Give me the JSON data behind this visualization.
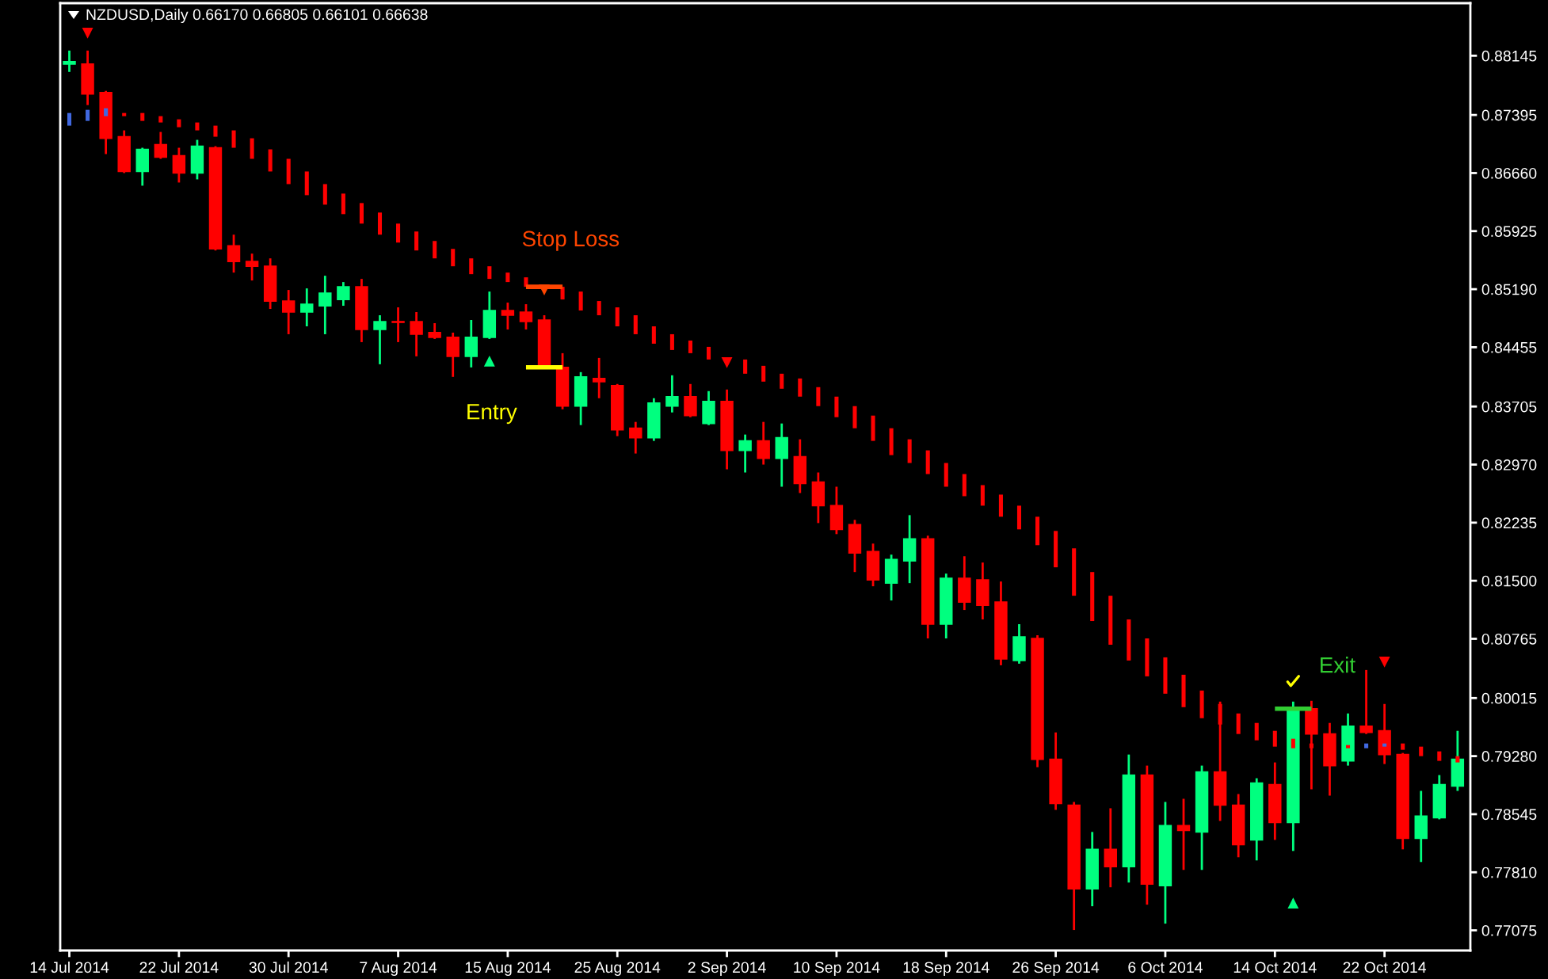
{
  "chart_data": {
    "type": "candlestick",
    "title": "NZDUSD,Daily 0.66170 0.66805 0.66101 0.66638",
    "categories": [
      "14 Jul 2014",
      null,
      null,
      null,
      null,
      null,
      "22 Jul 2014",
      null,
      null,
      null,
      null,
      null,
      "30 Jul 2014",
      null,
      null,
      null,
      null,
      null,
      "7 Aug 2014",
      null,
      null,
      null,
      null,
      null,
      "15 Aug 2014",
      null,
      null,
      null,
      null,
      null,
      "25 Aug 2014",
      null,
      null,
      null,
      null,
      null,
      "2 Sep 2014",
      null,
      null,
      null,
      null,
      null,
      "10 Sep 2014",
      null,
      null,
      null,
      null,
      null,
      "18 Sep 2014",
      null,
      null,
      null,
      null,
      null,
      "26 Sep 2014",
      null,
      null,
      null,
      null,
      null,
      "6 Oct 2014",
      null,
      null,
      null,
      null,
      null,
      "14 Oct 2014",
      null,
      null,
      null,
      null,
      null,
      "22 Oct 2014",
      null,
      null,
      null,
      null
    ],
    "ohlc": [
      [
        0.8804,
        0.8821,
        0.8794,
        0.8807
      ],
      [
        0.8804,
        0.8821,
        0.8752,
        0.8766
      ],
      [
        0.8768,
        0.877,
        0.869,
        0.871
      ],
      [
        0.8712,
        0.872,
        0.8666,
        0.8668
      ],
      [
        0.8668,
        0.8698,
        0.865,
        0.8696
      ],
      [
        0.8702,
        0.8718,
        0.8684,
        0.8686
      ],
      [
        0.8688,
        0.8698,
        0.8654,
        0.8666
      ],
      [
        0.8666,
        0.8708,
        0.8658,
        0.87
      ],
      [
        0.8698,
        0.87,
        0.8568,
        0.857
      ],
      [
        0.8574,
        0.8588,
        0.854,
        0.8554
      ],
      [
        0.8554,
        0.8564,
        0.853,
        0.8548
      ],
      [
        0.8548,
        0.8558,
        0.8494,
        0.8504
      ],
      [
        0.8504,
        0.8518,
        0.8462,
        0.849
      ],
      [
        0.849,
        0.852,
        0.8472,
        0.85
      ],
      [
        0.8498,
        0.8536,
        0.8462,
        0.8514
      ],
      [
        0.8506,
        0.8528,
        0.8498,
        0.8522
      ],
      [
        0.8522,
        0.8532,
        0.8452,
        0.8468
      ],
      [
        0.8468,
        0.8486,
        0.8424,
        0.8478
      ],
      [
        0.8478,
        0.8496,
        0.8452,
        0.8477
      ],
      [
        0.8478,
        0.849,
        0.8434,
        0.8462
      ],
      [
        0.8464,
        0.8476,
        0.8456,
        0.8458
      ],
      [
        0.8458,
        0.8464,
        0.8408,
        0.8434
      ],
      [
        0.8434,
        0.848,
        0.842,
        0.8458
      ],
      [
        0.8458,
        0.8516,
        0.8456,
        0.8492
      ],
      [
        0.8492,
        0.8502,
        0.8468,
        0.8486
      ],
      [
        0.849,
        0.85,
        0.8468,
        0.8478
      ],
      [
        0.848,
        0.8486,
        0.8418,
        0.842
      ],
      [
        0.842,
        0.8438,
        0.8367,
        0.8371
      ],
      [
        0.8371,
        0.8414,
        0.8347,
        0.8408
      ],
      [
        0.8406,
        0.8432,
        0.8381,
        0.8402
      ],
      [
        0.8397,
        0.8399,
        0.8333,
        0.8341
      ],
      [
        0.8343,
        0.8351,
        0.8311,
        0.8331
      ],
      [
        0.8331,
        0.8381,
        0.8327,
        0.8375
      ],
      [
        0.8371,
        0.841,
        0.8363,
        0.8383
      ],
      [
        0.8383,
        0.8399,
        0.8357,
        0.8359
      ],
      [
        0.8349,
        0.839,
        0.8347,
        0.8377
      ],
      [
        0.8377,
        0.8392,
        0.8291,
        0.8315
      ],
      [
        0.8315,
        0.8335,
        0.8287,
        0.8327
      ],
      [
        0.8327,
        0.8351,
        0.8297,
        0.8305
      ],
      [
        0.8305,
        0.8349,
        0.8269,
        0.8331
      ],
      [
        0.8307,
        0.8329,
        0.8261,
        0.8273
      ],
      [
        0.8275,
        0.8287,
        0.8223,
        0.8245
      ],
      [
        0.8245,
        0.8269,
        0.8209,
        0.8215
      ],
      [
        0.8221,
        0.8227,
        0.8161,
        0.8185
      ],
      [
        0.8187,
        0.8197,
        0.8143,
        0.8151
      ],
      [
        0.8147,
        0.8183,
        0.8125,
        0.8177
      ],
      [
        0.8175,
        0.8233,
        0.8147,
        0.8203
      ],
      [
        0.8203,
        0.8207,
        0.8077,
        0.8095
      ],
      [
        0.8095,
        0.8159,
        0.8077,
        0.8153
      ],
      [
        0.8153,
        0.8181,
        0.8113,
        0.8123
      ],
      [
        0.8151,
        0.8173,
        0.8101,
        0.8119
      ],
      [
        0.8123,
        0.8149,
        0.8043,
        0.8051
      ],
      [
        0.8049,
        0.8095,
        0.8045,
        0.8079
      ],
      [
        0.8077,
        0.8081,
        0.7914,
        0.7924
      ],
      [
        0.7924,
        0.7958,
        0.786,
        0.7868
      ],
      [
        0.7866,
        0.787,
        0.7708,
        0.776
      ],
      [
        0.776,
        0.7832,
        0.7738,
        0.781
      ],
      [
        0.781,
        0.7862,
        0.7762,
        0.7788
      ],
      [
        0.7788,
        0.793,
        0.7768,
        0.7904
      ],
      [
        0.7904,
        0.7916,
        0.774,
        0.7766
      ],
      [
        0.7764,
        0.787,
        0.7716,
        0.784
      ],
      [
        0.784,
        0.7874,
        0.7784,
        0.7834
      ],
      [
        0.7832,
        0.7916,
        0.7784,
        0.7908
      ],
      [
        0.7908,
        0.7997,
        0.7846,
        0.7866
      ],
      [
        0.7866,
        0.788,
        0.78,
        0.7816
      ],
      [
        0.7822,
        0.79,
        0.7796,
        0.7894
      ],
      [
        0.7892,
        0.792,
        0.7822,
        0.7844
      ],
      [
        0.7844,
        0.7997,
        0.7808,
        0.7988
      ],
      [
        0.7988,
        0.7998,
        0.7886,
        0.7956
      ],
      [
        0.7956,
        0.797,
        0.7878,
        0.7916
      ],
      [
        0.7922,
        0.7982,
        0.7916,
        0.7966
      ],
      [
        0.7966,
        0.8037,
        0.7956,
        0.7958
      ],
      [
        0.796,
        0.7994,
        0.7918,
        0.793
      ],
      [
        0.793,
        0.7932,
        0.781,
        0.7824
      ],
      [
        0.7824,
        0.7884,
        0.7794,
        0.7852
      ],
      [
        0.785,
        0.7904,
        0.7848,
        0.7892
      ],
      [
        0.789,
        0.796,
        0.7884,
        0.7924
      ]
    ],
    "colors": [
      "#00ff7f",
      "#ff0000",
      "#ff0000",
      "#ff0000",
      "#00ff7f",
      "#ff0000",
      "#ff0000",
      "#00ff7f",
      "#ff0000",
      "#ff0000",
      "#ff0000",
      "#ff0000",
      "#ff0000",
      "#00ff7f",
      "#00ff7f",
      "#00ff7f",
      "#ff0000",
      "#00ff7f",
      "#ff0000",
      "#ff0000",
      "#ff0000",
      "#ff0000",
      "#00ff7f",
      "#00ff7f",
      "#ff0000",
      "#ff0000",
      "#ff0000",
      "#ff0000",
      "#00ff7f",
      "#ff0000",
      "#ff0000",
      "#ff0000",
      "#00ff7f",
      "#00ff7f",
      "#ff0000",
      "#00ff7f",
      "#ff0000",
      "#00ff7f",
      "#ff0000",
      "#00ff7f",
      "#ff0000",
      "#ff0000",
      "#ff0000",
      "#ff0000",
      "#ff0000",
      "#00ff7f",
      "#00ff7f",
      "#ff0000",
      "#00ff7f",
      "#ff0000",
      "#ff0000",
      "#ff0000",
      "#00ff7f",
      "#ff0000",
      "#ff0000",
      "#ff0000",
      "#00ff7f",
      "#ff0000",
      "#00ff7f",
      "#ff0000",
      "#00ff7f",
      "#ff0000",
      "#00ff7f",
      "#ff0000",
      "#ff0000",
      "#00ff7f",
      "#ff0000",
      "#00ff7f",
      "#ff0000",
      "#ff0000",
      "#00ff7f",
      "#ff0000",
      "#ff0000",
      "#ff0000",
      "#00ff7f",
      "#00ff7f",
      "#00ff7f"
    ],
    "ylim": [
      0.7682,
      0.8881
    ],
    "yticks": [
      0.88145,
      0.87395,
      {
        "value": 0.8666,
        "label": "0.86660"
      },
      0.85925,
      {
        "value": 0.8519,
        "label": "0.85190"
      },
      0.84455,
      0.83705,
      {
        "value": 0.8297,
        "label": "0.82970"
      },
      0.82235,
      {
        "value": 0.815,
        "label": "0.81500"
      },
      0.80765,
      0.80015,
      {
        "value": 0.7928,
        "label": "0.79280"
      },
      0.78545,
      {
        "value": 0.7781,
        "label": "0.77810"
      },
      0.77075
    ],
    "series": [
      {
        "type": "bar",
        "base": [
          0.8726,
          0.8732,
          0.8738,
          0.8738,
          0.8732,
          0.873,
          0.8724,
          0.872,
          0.8712,
          0.8698,
          0.8684,
          0.8668,
          0.8652,
          0.8638,
          0.8626,
          0.8614,
          0.8602,
          0.8588,
          0.8578,
          0.8568,
          0.8558,
          0.8548,
          0.8538,
          0.8532,
          0.8528,
          0.8522,
          null,
          0.8506,
          0.8492,
          0.8486,
          0.8472,
          0.8462,
          0.845,
          0.8442,
          0.8438,
          0.843,
          null,
          0.8412,
          0.8402,
          0.8393,
          0.8383,
          0.8371,
          0.8357,
          0.8343,
          0.8327,
          0.8309,
          0.8299,
          0.8285,
          0.8269,
          0.8257,
          0.8245,
          0.8231,
          0.8215,
          0.8195,
          0.8167,
          0.8131,
          0.8099,
          0.8069,
          0.8049,
          0.8029,
          0.8007,
          0.799,
          0.7976,
          0.7968,
          0.7956,
          0.7948,
          0.794,
          0.7938,
          0.7938,
          null,
          0.7938,
          0.7938,
          0.794,
          0.7936,
          0.7928,
          0.7922,
          0.792
        ],
        "values": [
          0.0016,
          0.0014,
          0.001,
          0.0004,
          0.001,
          0.0008,
          0.001,
          0.001,
          0.0014,
          0.0022,
          0.0026,
          0.0028,
          0.0032,
          0.003,
          0.0026,
          0.0026,
          0.0026,
          0.0028,
          0.0024,
          0.0024,
          0.0022,
          0.0022,
          0.002,
          0.0016,
          0.0012,
          0.0012,
          null,
          0.0016,
          0.0024,
          0.0018,
          0.0024,
          0.0024,
          0.0022,
          0.002,
          0.0016,
          0.0016,
          null,
          0.0018,
          0.002,
          0.0019,
          0.0023,
          0.0024,
          0.0026,
          0.0028,
          0.0032,
          0.0034,
          0.003,
          0.003,
          0.003,
          0.0028,
          0.0026,
          0.0028,
          0.003,
          0.0036,
          0.0046,
          0.006,
          0.0062,
          0.0062,
          0.0052,
          0.0048,
          0.0046,
          0.0041,
          0.0035,
          0.0026,
          0.0026,
          0.0022,
          0.002,
          0.0012,
          0.0006,
          null,
          0.0004,
          0.0006,
          0.0004,
          0.0008,
          0.0012,
          0.0012,
          0.0008
        ],
        "colors": [
          "#4169e1",
          "#4169e1",
          "#4169e1",
          "#ff0000",
          "#ff0000",
          "#ff0000",
          "#ff0000",
          "#ff0000",
          "#ff0000",
          "#ff0000",
          "#ff0000",
          "#ff0000",
          "#ff0000",
          "#ff0000",
          "#ff0000",
          "#ff0000",
          "#ff0000",
          "#ff0000",
          "#ff0000",
          "#ff0000",
          "#ff0000",
          "#ff0000",
          "#ff0000",
          "#ff0000",
          "#ff0000",
          "#ff0000",
          "#ff0000",
          "#ff0000",
          "#ff0000",
          "#ff0000",
          "#ff0000",
          "#ff0000",
          "#ff0000",
          "#ff0000",
          "#ff0000",
          "#ff0000",
          "#ff0000",
          "#ff0000",
          "#ff0000",
          "#ff0000",
          "#ff0000",
          "#ff0000",
          "#ff0000",
          "#ff0000",
          "#ff0000",
          "#ff0000",
          "#ff0000",
          "#ff0000",
          "#ff0000",
          "#ff0000",
          "#ff0000",
          "#ff0000",
          "#ff0000",
          "#ff0000",
          "#ff0000",
          "#ff0000",
          "#ff0000",
          "#ff0000",
          "#ff0000",
          "#ff0000",
          "#ff0000",
          "#ff0000",
          "#ff0000",
          "#ff0000",
          "#ff0000",
          "#ff0000",
          "#ff0000",
          "#ff0000",
          "#ff0000",
          "#ff0000",
          "#ff0000",
          "#4169e1",
          "#4169e1",
          "#ff0000",
          "#ff0000",
          "#ff0000",
          "#ff0000"
        ]
      },
      {
        "type": "scatter",
        "marker": "triangle",
        "color": "#ff0000",
        "values": [
          null,
          0.8843,
          null,
          null,
          null,
          null,
          null,
          null,
          null,
          null,
          null,
          null,
          null,
          null,
          null,
          null,
          null,
          null,
          null,
          null,
          null,
          null,
          null,
          null,
          null,
          null,
          null,
          null,
          null,
          null,
          null,
          null,
          null,
          null,
          null,
          null,
          0.8426,
          null,
          null,
          null,
          null,
          null,
          null,
          null,
          null,
          null,
          null,
          null,
          null,
          null,
          null,
          null,
          null,
          null,
          null,
          null,
          null,
          null,
          null,
          null,
          null,
          null,
          null,
          null,
          null,
          null,
          null,
          null,
          null,
          null,
          null,
          null,
          0.8047,
          null,
          null,
          null,
          null
        ]
      },
      {
        "type": "scatter",
        "marker": "triangle",
        "color": "#00ff7f",
        "values": [
          null,
          null,
          null,
          null,
          null,
          null,
          null,
          null,
          null,
          null,
          null,
          null,
          null,
          null,
          null,
          null,
          null,
          null,
          null,
          null,
          null,
          null,
          null,
          0.8428,
          null,
          null,
          null,
          null,
          null,
          null,
          null,
          null,
          null,
          null,
          null,
          null,
          null,
          null,
          null,
          null,
          null,
          null,
          null,
          null,
          null,
          null,
          null,
          null,
          null,
          null,
          null,
          null,
          null,
          null,
          null,
          null,
          null,
          null,
          null,
          null,
          null,
          null,
          null,
          null,
          null,
          null,
          null,
          0.7742,
          null,
          null,
          null,
          null,
          null,
          null,
          null,
          null,
          null
        ]
      },
      {
        "type": "scatter",
        "marker": "triangle",
        "color": "#ff4500",
        "values": [
          null,
          null,
          null,
          null,
          null,
          null,
          null,
          null,
          null,
          null,
          null,
          null,
          null,
          null,
          null,
          null,
          null,
          null,
          null,
          null,
          null,
          null,
          null,
          null,
          null,
          null,
          0.8518,
          null,
          null,
          null,
          null,
          null,
          null,
          null,
          null,
          null,
          null,
          null,
          null,
          null,
          null,
          null,
          null,
          null,
          null,
          null,
          null,
          null,
          null,
          null,
          null,
          null,
          null,
          null,
          null,
          null,
          null,
          null,
          null,
          null,
          null,
          null,
          null,
          null,
          null,
          null,
          null,
          null,
          null,
          null,
          null,
          null,
          null,
          null,
          null,
          null,
          null
        ]
      },
      {
        "type": "line",
        "name": "Stop Loss",
        "color": "#ff4500",
        "values": [
          null,
          null,
          null,
          null,
          null,
          null,
          null,
          null,
          null,
          null,
          null,
          null,
          null,
          null,
          null,
          null,
          null,
          null,
          null,
          null,
          null,
          null,
          null,
          null,
          null,
          0.8522,
          0.8522,
          0.8522,
          null,
          null,
          null,
          null,
          null,
          null,
          null,
          null,
          null,
          null,
          null,
          null,
          null,
          null,
          null,
          null,
          null,
          null,
          null,
          null,
          null,
          null,
          null,
          null,
          null,
          null,
          null,
          null,
          null,
          null,
          null,
          null,
          null,
          null,
          null,
          null,
          null,
          null,
          null,
          null,
          null,
          null,
          null,
          null,
          null,
          null,
          null,
          null,
          null
        ]
      },
      {
        "type": "line",
        "name": "Entry",
        "color": "#ffff00",
        "values": [
          null,
          null,
          null,
          null,
          null,
          null,
          null,
          null,
          null,
          null,
          null,
          null,
          null,
          null,
          null,
          null,
          null,
          null,
          null,
          null,
          null,
          null,
          null,
          null,
          null,
          0.842,
          0.842,
          0.842,
          null,
          null,
          null,
          null,
          null,
          null,
          null,
          null,
          null,
          null,
          null,
          null,
          null,
          null,
          null,
          null,
          null,
          null,
          null,
          null,
          null,
          null,
          null,
          null,
          null,
          null,
          null,
          null,
          null,
          null,
          null,
          null,
          null,
          null,
          null,
          null,
          null,
          null,
          null,
          null,
          null,
          null,
          null,
          null,
          null,
          null,
          null,
          null,
          null
        ]
      },
      {
        "type": "line",
        "name": "Exit",
        "color": "#32cd32",
        "values": [
          null,
          null,
          null,
          null,
          null,
          null,
          null,
          null,
          null,
          null,
          null,
          null,
          null,
          null,
          null,
          null,
          null,
          null,
          null,
          null,
          null,
          null,
          null,
          null,
          null,
          null,
          null,
          null,
          null,
          null,
          null,
          null,
          null,
          null,
          null,
          null,
          null,
          null,
          null,
          null,
          null,
          null,
          null,
          null,
          null,
          null,
          null,
          null,
          null,
          null,
          null,
          null,
          null,
          null,
          null,
          null,
          null,
          null,
          null,
          null,
          null,
          null,
          null,
          null,
          null,
          null,
          0.7988,
          0.7988,
          0.7988,
          null,
          null,
          null,
          null,
          null,
          null,
          null,
          null
        ]
      }
    ]
  }
}
